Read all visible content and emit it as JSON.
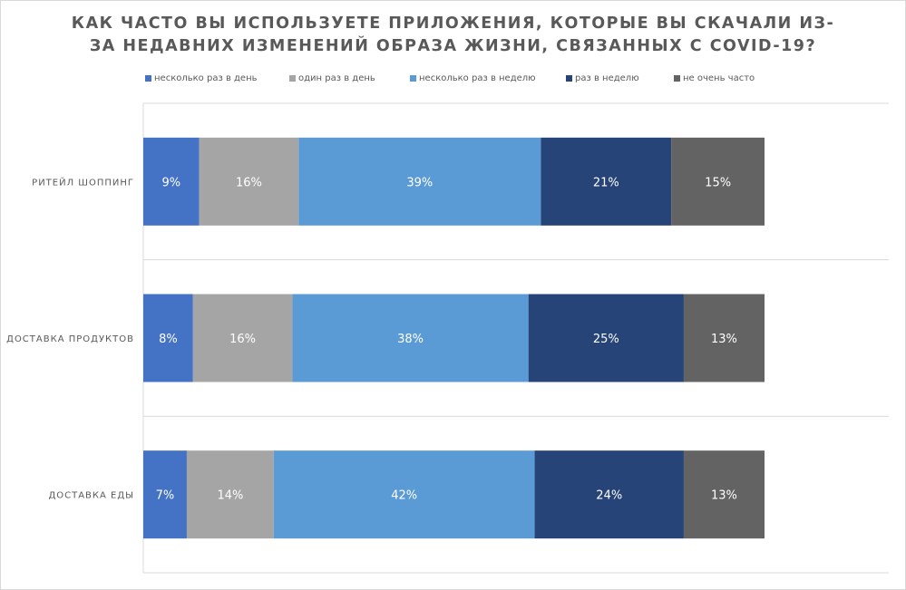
{
  "chart_data": {
    "type": "bar",
    "orientation": "horizontal",
    "stacked": true,
    "percent_stacked": true,
    "title": "КАК ЧАСТО ВЫ ИСПОЛЬЗУЕТЕ ПРИЛОЖЕНИЯ, КОТОРЫЕ ВЫ СКАЧАЛИ ИЗ-ЗА НЕДАВНИХ ИЗМЕНЕНИЙ ОБРАЗА ЖИЗНИ, СВЯЗАННЫХ С COVID-19?",
    "title_lines": [
      "КАК ЧАСТО ВЫ ИСПОЛЬЗУЕТЕ ПРИЛОЖЕНИЯ, КОТОРЫЕ ВЫ СКАЧАЛИ ИЗ-",
      "ЗА НЕДАВНИХ ИЗМЕНЕНИЙ ОБРАЗА ЖИЗНИ, СВЯЗАННЫХ С COVID-19?"
    ],
    "categories": [
      "РИТЕЙЛ ШОППИНГ",
      "ДОСТАВКА ПРОДУКТОВ",
      "ДОСТАВКА ЕДЫ"
    ],
    "series": [
      {
        "name": "несколько раз в день",
        "color": "#4472C4",
        "values": [
          9,
          8,
          7
        ],
        "labels": [
          "9%",
          "8%",
          "7%"
        ]
      },
      {
        "name": "один раз в день",
        "color": "#A5A5A5",
        "values": [
          16,
          16,
          14
        ],
        "labels": [
          "16%",
          "16%",
          "14%"
        ]
      },
      {
        "name": "несколько раз в неделю",
        "color": "#5B9BD5",
        "values": [
          39,
          38,
          42
        ],
        "labels": [
          "39%",
          "38%",
          "42%"
        ]
      },
      {
        "name": "раз в неделю",
        "color": "#264478",
        "values": [
          21,
          25,
          24
        ],
        "labels": [
          "21%",
          "25%",
          "24%"
        ]
      },
      {
        "name": "не очень часто",
        "color": "#636363",
        "values": [
          15,
          13,
          13
        ],
        "labels": [
          "15%",
          "13%",
          "13%"
        ]
      }
    ],
    "xlim": [
      0,
      100
    ],
    "legend_position": "top",
    "grid": "horizontal category separators"
  }
}
